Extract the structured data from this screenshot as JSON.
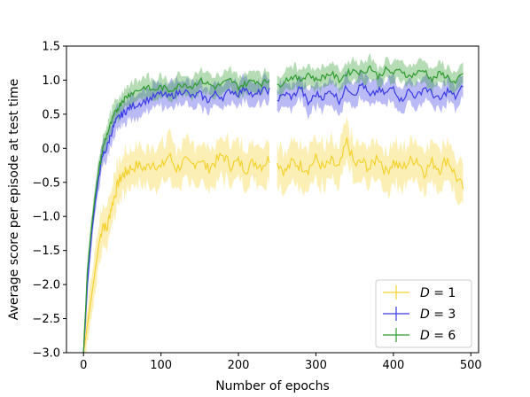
{
  "chart_data": {
    "type": "line",
    "xlabel": "Number of epochs",
    "ylabel": "Average score per episode at test time",
    "xlim": [
      -22,
      510
    ],
    "ylim": [
      -3.0,
      1.5
    ],
    "xticks": [
      0,
      100,
      200,
      300,
      400,
      500
    ],
    "yticks": [
      -3.0,
      -2.5,
      -2.0,
      -1.5,
      -1.0,
      -0.5,
      0.0,
      0.5,
      1.0,
      1.5
    ],
    "xtick_labels": [
      "0",
      "100",
      "200",
      "300",
      "400",
      "500"
    ],
    "ytick_labels": [
      "−3.0",
      "−2.5",
      "−2.0",
      "−1.5",
      "−1.0",
      "−0.5",
      "0.0",
      "0.5",
      "1.0",
      "1.5"
    ],
    "grid": false,
    "legend_position": "lower-right",
    "legend_labels": [
      {
        "prefix": "D",
        "suffix": " = 1"
      },
      {
        "prefix": "D",
        "suffix": " = 3"
      },
      {
        "prefix": "D",
        "suffix": " = 6"
      }
    ],
    "series": [
      {
        "name": "D = 1",
        "color": "#f5d22e",
        "x": [
          0,
          5,
          10,
          15,
          20,
          25,
          30,
          35,
          40,
          45,
          50,
          55,
          60,
          70,
          80,
          90,
          100,
          110,
          120,
          130,
          140,
          150,
          160,
          170,
          180,
          190,
          200,
          210,
          220,
          230,
          240,
          250,
          260,
          270,
          280,
          290,
          300,
          310,
          320,
          330,
          340,
          350,
          360,
          370,
          380,
          390,
          400,
          410,
          420,
          430,
          440,
          450,
          460,
          470,
          480,
          490
        ],
        "y": [
          -3.0,
          -2.6,
          -2.2,
          -1.8,
          -1.4,
          -1.1,
          -1.2,
          -0.9,
          -0.7,
          -0.5,
          -0.4,
          -0.35,
          -0.3,
          -0.25,
          -0.3,
          -0.2,
          -0.3,
          -0.1,
          -0.3,
          -0.2,
          -0.25,
          -0.15,
          -0.3,
          -0.2,
          -0.1,
          -0.25,
          -0.2,
          -0.3,
          -0.2,
          -0.25,
          -0.15,
          -0.2,
          -0.35,
          -0.2,
          -0.25,
          -0.3,
          -0.15,
          -0.3,
          -0.2,
          -0.3,
          0.1,
          -0.25,
          -0.2,
          -0.3,
          -0.1,
          -0.35,
          -0.2,
          -0.3,
          -0.2,
          -0.15,
          -0.35,
          -0.2,
          -0.3,
          -0.15,
          -0.4,
          -0.6
        ],
        "band": 0.3
      },
      {
        "name": "D = 3",
        "color": "#3a3ae8",
        "x": [
          0,
          5,
          10,
          15,
          20,
          25,
          30,
          35,
          40,
          45,
          50,
          55,
          60,
          70,
          80,
          90,
          100,
          110,
          120,
          130,
          140,
          150,
          160,
          170,
          180,
          190,
          200,
          210,
          220,
          230,
          240,
          250,
          260,
          270,
          280,
          290,
          300,
          310,
          320,
          330,
          340,
          350,
          360,
          370,
          380,
          390,
          400,
          410,
          420,
          430,
          440,
          450,
          460,
          470,
          480,
          490
        ],
        "y": [
          -3.0,
          -2.0,
          -1.3,
          -0.8,
          -0.4,
          -0.1,
          0.0,
          0.2,
          0.35,
          0.45,
          0.5,
          0.55,
          0.6,
          0.65,
          0.7,
          0.75,
          0.8,
          0.75,
          0.8,
          0.85,
          0.75,
          0.8,
          0.7,
          0.8,
          0.75,
          0.85,
          0.8,
          0.9,
          0.75,
          0.85,
          0.85,
          0.7,
          0.8,
          0.75,
          0.9,
          0.65,
          0.8,
          0.75,
          0.85,
          0.7,
          0.9,
          0.8,
          0.95,
          0.75,
          0.85,
          0.8,
          0.9,
          0.7,
          0.85,
          0.75,
          0.9,
          0.8,
          0.7,
          0.85,
          0.75,
          0.9
        ],
        "band": 0.18
      },
      {
        "name": "D = 6",
        "color": "#2e9b2e",
        "x": [
          0,
          5,
          10,
          15,
          20,
          25,
          30,
          35,
          40,
          45,
          50,
          55,
          60,
          70,
          80,
          90,
          100,
          110,
          120,
          130,
          140,
          150,
          160,
          170,
          180,
          190,
          200,
          210,
          220,
          230,
          240,
          250,
          260,
          270,
          280,
          290,
          300,
          310,
          320,
          330,
          340,
          350,
          360,
          370,
          380,
          390,
          400,
          410,
          420,
          430,
          440,
          450,
          460,
          470,
          480,
          490
        ],
        "y": [
          -3.0,
          -1.8,
          -1.2,
          -0.7,
          -0.3,
          0.0,
          0.2,
          0.35,
          0.5,
          0.6,
          0.7,
          0.75,
          0.8,
          0.85,
          0.9,
          0.85,
          0.9,
          0.85,
          0.9,
          0.95,
          0.9,
          1.0,
          0.95,
          0.9,
          0.95,
          1.0,
          0.9,
          0.95,
          1.0,
          0.95,
          1.0,
          0.9,
          1.0,
          1.05,
          1.0,
          1.1,
          1.0,
          1.05,
          1.1,
          1.0,
          1.1,
          1.15,
          1.1,
          1.2,
          1.05,
          1.15,
          1.1,
          1.15,
          1.05,
          1.1,
          1.15,
          1.0,
          1.1,
          1.05,
          0.95,
          1.1
        ],
        "band": 0.15
      }
    ],
    "gap": [
      240,
      250
    ]
  }
}
